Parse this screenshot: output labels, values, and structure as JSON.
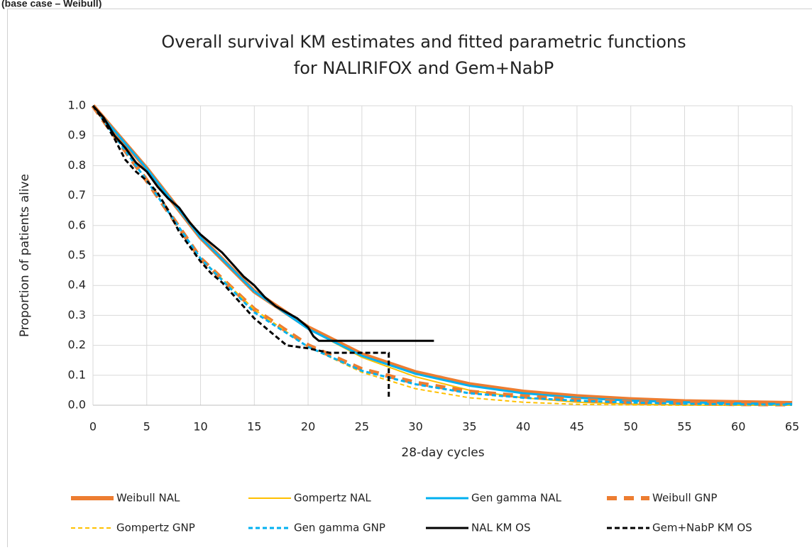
{
  "chart_data": {
    "type": "line",
    "caption": "(base case – Weibull)",
    "title": [
      "Overall survival KM estimates and fitted parametric functions",
      "for NALIRIFOX and Gem+NabP"
    ],
    "x_label": "28-day cycles",
    "y_label": "Proportion of patients alive",
    "x": [
      0,
      5,
      10,
      15,
      20,
      25,
      30,
      35,
      40,
      45,
      50,
      55,
      60,
      65
    ],
    "xlim": [
      0,
      65
    ],
    "xticks": [
      0,
      5,
      10,
      15,
      20,
      25,
      30,
      35,
      40,
      45,
      50,
      55,
      60,
      65
    ],
    "ylim": [
      0,
      1
    ],
    "yticks": [
      {
        "value": 0,
        "label": "0.0"
      },
      0.1,
      0.2,
      0.3,
      0.4,
      0.5,
      0.6,
      0.7,
      0.8,
      0.9,
      {
        "value": 1,
        "label": "1.0"
      }
    ],
    "grid": true,
    "legend": "bottom",
    "series": [
      {
        "name": "Weibull NAL",
        "color": "#ED7D31",
        "dashed": false,
        "values": [
          1.0,
          0.79,
          0.56,
          0.38,
          0.26,
          0.17,
          0.11,
          0.07,
          0.045,
          0.03,
          0.02,
          0.013,
          0.01,
          0.007
        ]
      },
      {
        "name": "Gompertz NAL",
        "color": "#FFC000",
        "dashed": false,
        "values": [
          1.0,
          0.79,
          0.56,
          0.38,
          0.255,
          0.16,
          0.095,
          0.05,
          0.025,
          0.01,
          0.004,
          0.001,
          0,
          0
        ]
      },
      {
        "name": "Gen gamma NAL",
        "color": "#00B0F0",
        "dashed": false,
        "values": [
          1.0,
          0.79,
          0.56,
          0.38,
          0.255,
          0.165,
          0.105,
          0.065,
          0.04,
          0.025,
          0.015,
          0.01,
          0.006,
          0.004
        ]
      },
      {
        "name": "Weibull GNP",
        "color": "#ED7D31",
        "dashed": true,
        "values": [
          1.0,
          0.75,
          0.49,
          0.32,
          0.2,
          0.12,
          0.075,
          0.045,
          0.03,
          0.018,
          0.01,
          0.007,
          0.004,
          0.003
        ]
      },
      {
        "name": "Gompertz GNP",
        "color": "#FFC000",
        "dashed": true,
        "values": [
          1.0,
          0.75,
          0.49,
          0.32,
          0.195,
          0.11,
          0.055,
          0.025,
          0.01,
          0.003,
          0.001,
          0,
          0,
          0
        ]
      },
      {
        "name": "Gen gamma GNP",
        "color": "#00B0F0",
        "dashed": true,
        "values": [
          1.0,
          0.75,
          0.49,
          0.31,
          0.195,
          0.115,
          0.07,
          0.04,
          0.025,
          0.015,
          0.009,
          0.005,
          0.003,
          0.002
        ]
      },
      {
        "name": "NAL KM OS",
        "color": "#000000",
        "dashed": false,
        "x": [
          0,
          1,
          2,
          3,
          4,
          5,
          6,
          7,
          8,
          9,
          10,
          11,
          12,
          13,
          14,
          15,
          16,
          17,
          18,
          19,
          20,
          20.5,
          21,
          31.7
        ],
        "values": [
          1.0,
          0.96,
          0.9,
          0.86,
          0.81,
          0.78,
          0.73,
          0.69,
          0.66,
          0.61,
          0.57,
          0.54,
          0.51,
          0.47,
          0.43,
          0.4,
          0.36,
          0.33,
          0.31,
          0.29,
          0.26,
          0.23,
          0.215,
          0.215
        ]
      },
      {
        "name": "Gem+NabP KM OS",
        "color": "#000000",
        "dashed": true,
        "x": [
          0,
          1,
          2,
          3,
          4,
          5,
          6,
          7,
          8,
          9,
          10,
          11,
          12,
          13,
          14,
          15,
          16,
          17,
          18,
          19,
          20,
          22,
          24,
          26,
          27.5,
          27.5
        ],
        "values": [
          1.0,
          0.95,
          0.89,
          0.82,
          0.78,
          0.75,
          0.71,
          0.65,
          0.58,
          0.53,
          0.48,
          0.44,
          0.41,
          0.37,
          0.33,
          0.29,
          0.26,
          0.23,
          0.2,
          0.195,
          0.19,
          0.175,
          0.175,
          0.175,
          0.175,
          0.02
        ]
      }
    ]
  }
}
